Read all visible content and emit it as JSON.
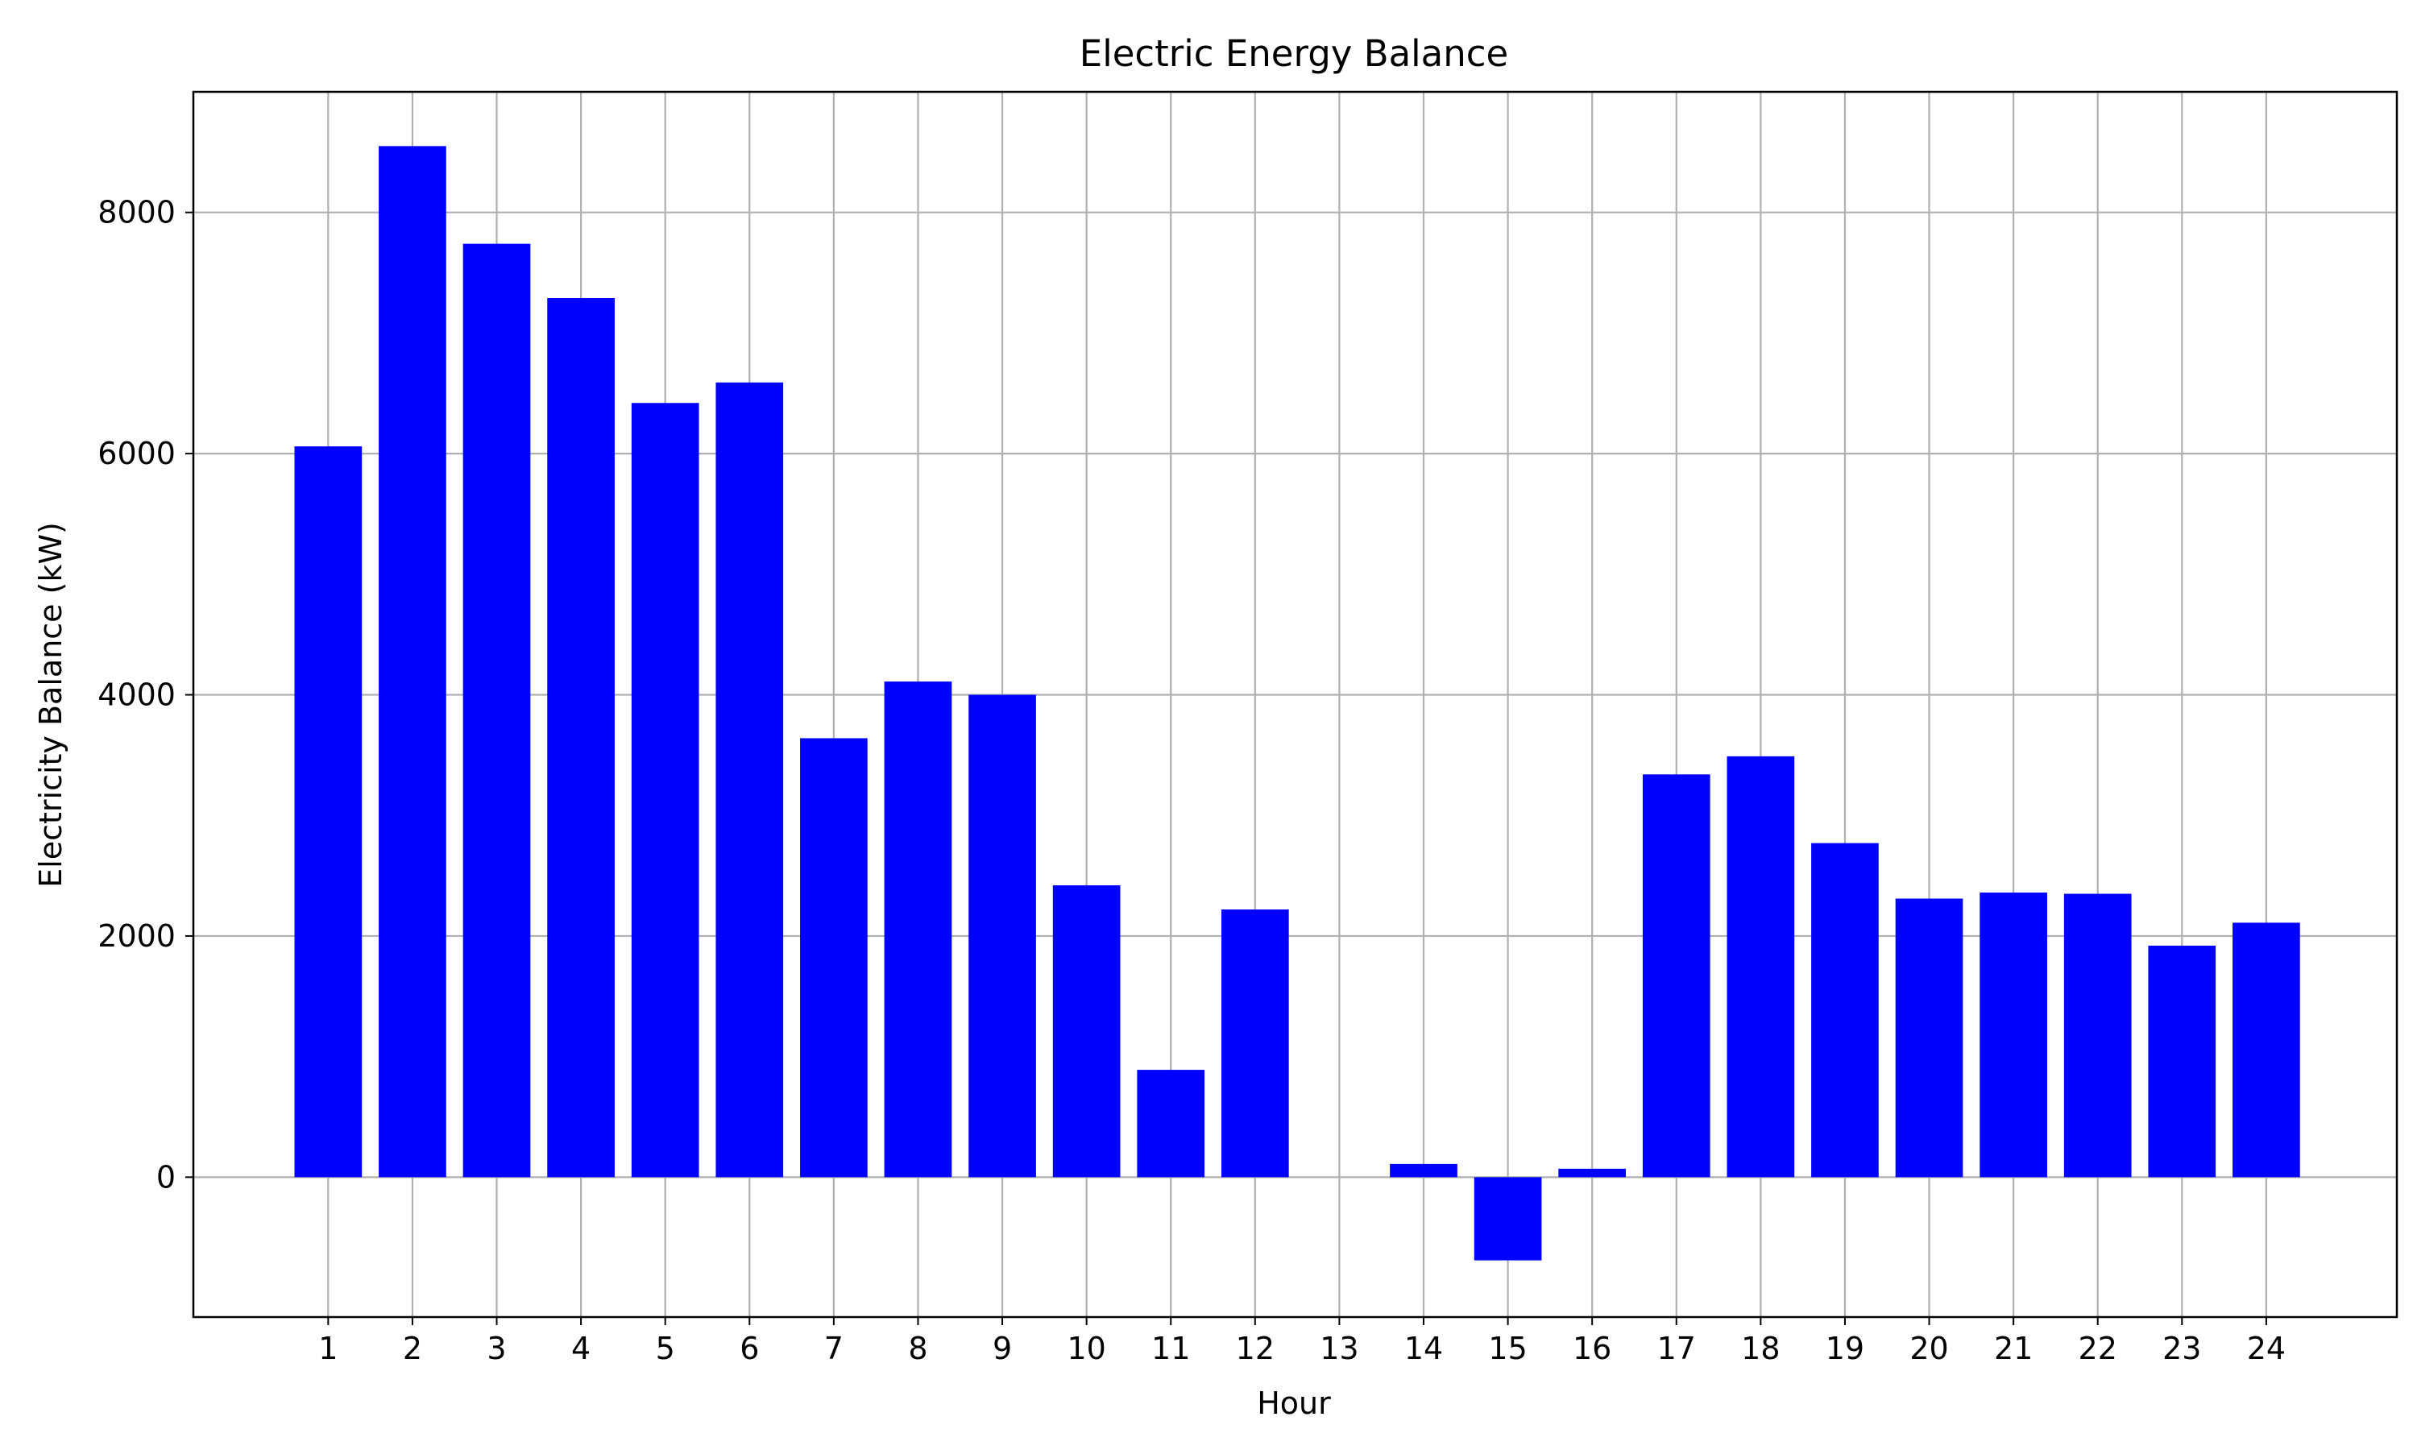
{
  "chart_data": {
    "type": "bar",
    "title": "Electric Energy Balance",
    "xlabel": "Hour",
    "ylabel": "Electricity Balance (kW)",
    "categories": [
      "1",
      "2",
      "3",
      "4",
      "5",
      "6",
      "7",
      "8",
      "9",
      "10",
      "11",
      "12",
      "13",
      "14",
      "15",
      "16",
      "17",
      "18",
      "19",
      "20",
      "21",
      "22",
      "23",
      "24"
    ],
    "values": [
      6060,
      8550,
      7740,
      7290,
      6420,
      6590,
      3640,
      4110,
      4000,
      2420,
      890,
      2220,
      0,
      110,
      -690,
      70,
      3340,
      3490,
      2770,
      2310,
      2360,
      2350,
      1920,
      2110
    ],
    "ylim": [
      -1160,
      9000
    ],
    "xlim": [
      -0.6,
      25.55
    ],
    "yticks": [
      0,
      2000,
      4000,
      6000,
      8000
    ],
    "grid": true,
    "bar_color": "#0000ff"
  }
}
